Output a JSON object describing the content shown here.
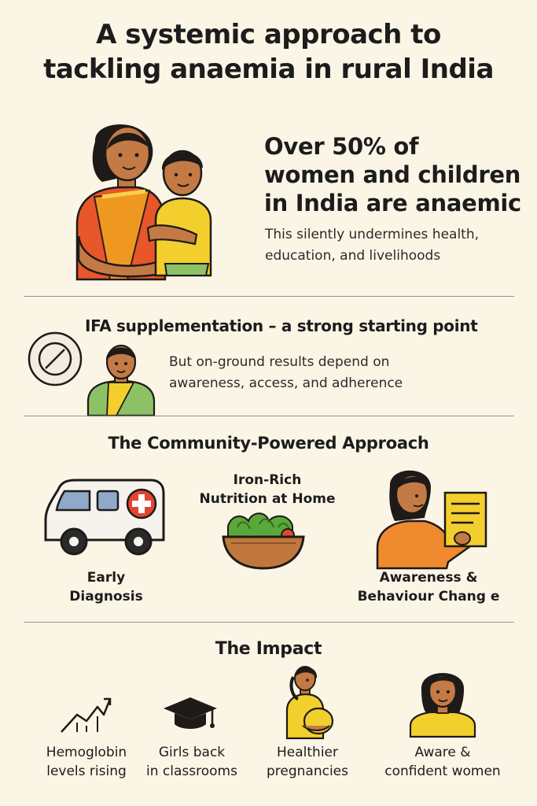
{
  "title": {
    "line1": "A systemic approach to",
    "line2": "tackling anaemia in rural India"
  },
  "hero": {
    "headline_line1": "Over 50% of",
    "headline_line2": "women and children",
    "headline_line3": "in India are anaemic",
    "sub_line1": "This silently undermines health,",
    "sub_line2": "education, and livelihoods"
  },
  "ifa": {
    "title": "IFA supplementation – a strong starting point",
    "body_line1": "But on-ground results depend on",
    "body_line2": "awareness, access, and adherence"
  },
  "approach": {
    "title": "The Community-Powered Approach",
    "items": [
      {
        "line1": "Early",
        "line2": "Diagnosis",
        "icon": "ambulance-icon"
      },
      {
        "line1": "Iron-Rich",
        "line2": "Nutrition at Home",
        "icon": "salad-bowl-icon"
      },
      {
        "line1": "Awareness &",
        "line2": "Behaviour Chang e",
        "icon": "woman-with-document-icon"
      }
    ]
  },
  "impact": {
    "title": "The Impact",
    "items": [
      {
        "line1": "Hemoglobin",
        "line2": "levels rising",
        "icon": "rising-graph-icon"
      },
      {
        "line1": "Girls back",
        "line2": "in classrooms",
        "icon": "graduation-cap-icon"
      },
      {
        "line1": "Healthier",
        "line2": "pregnancies",
        "icon": "pregnant-woman-icon"
      },
      {
        "line1": "Aware &",
        "line2": "confident women",
        "icon": "woman-portrait-icon"
      }
    ]
  },
  "colors": {
    "background": "#fbf5e6",
    "skin": "#c47a45",
    "hair": "#1e1a18",
    "saree_orange": "#e8562a",
    "shirt_yellow": "#f3cf2e",
    "green": "#8cc265",
    "ambulance_red": "#e2452f",
    "text": "#1c1c1c"
  }
}
